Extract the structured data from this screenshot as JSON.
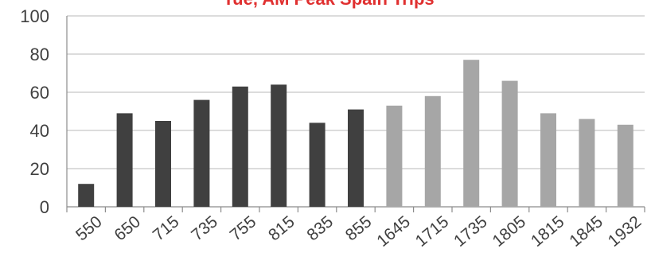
{
  "chart_data": {
    "type": "bar",
    "title": "Tue, AM Peak Spain Trips",
    "categories": [
      "550",
      "650",
      "715",
      "735",
      "755",
      "815",
      "835",
      "855",
      "1645",
      "1715",
      "1735",
      "1805",
      "1815",
      "1845",
      "1932"
    ],
    "values": [
      12,
      49,
      45,
      56,
      63,
      64,
      44,
      51,
      53,
      58,
      77,
      66,
      49,
      46,
      43
    ],
    "ylim": [
      0,
      100
    ],
    "yticks": [
      "0",
      "20",
      "40",
      "60",
      "80",
      "100"
    ],
    "grid": true,
    "colors": {
      "title": "#e03030",
      "dark_bar": "#404040",
      "light_bar": "#a6a6a6",
      "grid": "#c8c8c8",
      "axis": "#8c8c8c"
    },
    "bar_color_groups": [
      "dark",
      "dark",
      "dark",
      "dark",
      "dark",
      "dark",
      "dark",
      "dark",
      "light",
      "light",
      "light",
      "light",
      "light",
      "light",
      "light"
    ]
  }
}
